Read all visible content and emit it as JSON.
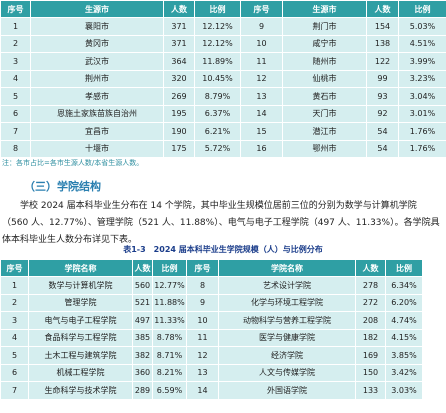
{
  "table1": {
    "header": [
      "序号",
      "生源市",
      "人数",
      "比例",
      "序号",
      "生源市",
      "人数",
      "比例"
    ],
    "rows": [
      [
        "1",
        "襄阳市",
        "371",
        "12.12%",
        "9",
        "荆门市",
        "154",
        "5.03%"
      ],
      [
        "2",
        "黄冈市",
        "371",
        "12.12%",
        "10",
        "咸宁市",
        "138",
        "4.51%"
      ],
      [
        "3",
        "武汉市",
        "364",
        "11.89%",
        "11",
        "随州市",
        "122",
        "3.99%"
      ],
      [
        "4",
        "荆州市",
        "320",
        "10.45%",
        "12",
        "仙桃市",
        "99",
        "3.23%"
      ],
      [
        "5",
        "孝感市",
        "269",
        "8.79%",
        "13",
        "黄石市",
        "93",
        "3.04%"
      ],
      [
        "6",
        "恩施土家族苗族自治州",
        "195",
        "6.37%",
        "14",
        "天门市",
        "92",
        "3.01%"
      ],
      [
        "7",
        "宜昌市",
        "190",
        "6.21%",
        "15",
        "潜江市",
        "54",
        "1.76%"
      ],
      [
        "8",
        "十堰市",
        "175",
        "5.72%",
        "16",
        "鄂州市",
        "54",
        "1.76%"
      ]
    ]
  },
  "note": "注：各市占比=各市生源人数/本省生源人数。",
  "heading": "（三）学院结构",
  "paragraph": "学校 2024 届本科毕业生分布在 14 个学院，其中毕业生规模位居前三位的分别为数学与计算机学院（560 人、12.77%）、管理学院（521 人、11.88%）、电气与电子工程学院（497 人、11.33%）。各学院具体本科毕业生人数分布详见下表。",
  "caption": "表1-3　2024 届本科毕业生学院规模（人）与比例分布",
  "table2": {
    "header": [
      "序号",
      "学院名称",
      "人数",
      "比例",
      "序号",
      "学院名称",
      "人数",
      "比例"
    ],
    "rows": [
      [
        "1",
        "数学与计算机学院",
        "560",
        "12.77%",
        "8",
        "艺术设计学院",
        "278",
        "6.34%"
      ],
      [
        "2",
        "管理学院",
        "521",
        "11.88%",
        "9",
        "化学与环境工程学院",
        "272",
        "6.20%"
      ],
      [
        "3",
        "电气与电子工程学院",
        "497",
        "11.33%",
        "10",
        "动物科学与营养工程学院",
        "208",
        "4.74%"
      ],
      [
        "4",
        "食品科学与工程学院",
        "385",
        "8.78%",
        "11",
        "医学与健康学院",
        "182",
        "4.15%"
      ],
      [
        "5",
        "土木工程与建筑学院",
        "382",
        "8.71%",
        "12",
        "经济学院",
        "169",
        "3.85%"
      ],
      [
        "6",
        "机械工程学院",
        "360",
        "8.21%",
        "13",
        "人文与传媒学院",
        "150",
        "3.42%"
      ],
      [
        "7",
        "生命科学与技术学院",
        "289",
        "6.59%",
        "14",
        "外国语学院",
        "133",
        "3.03%"
      ]
    ]
  }
}
